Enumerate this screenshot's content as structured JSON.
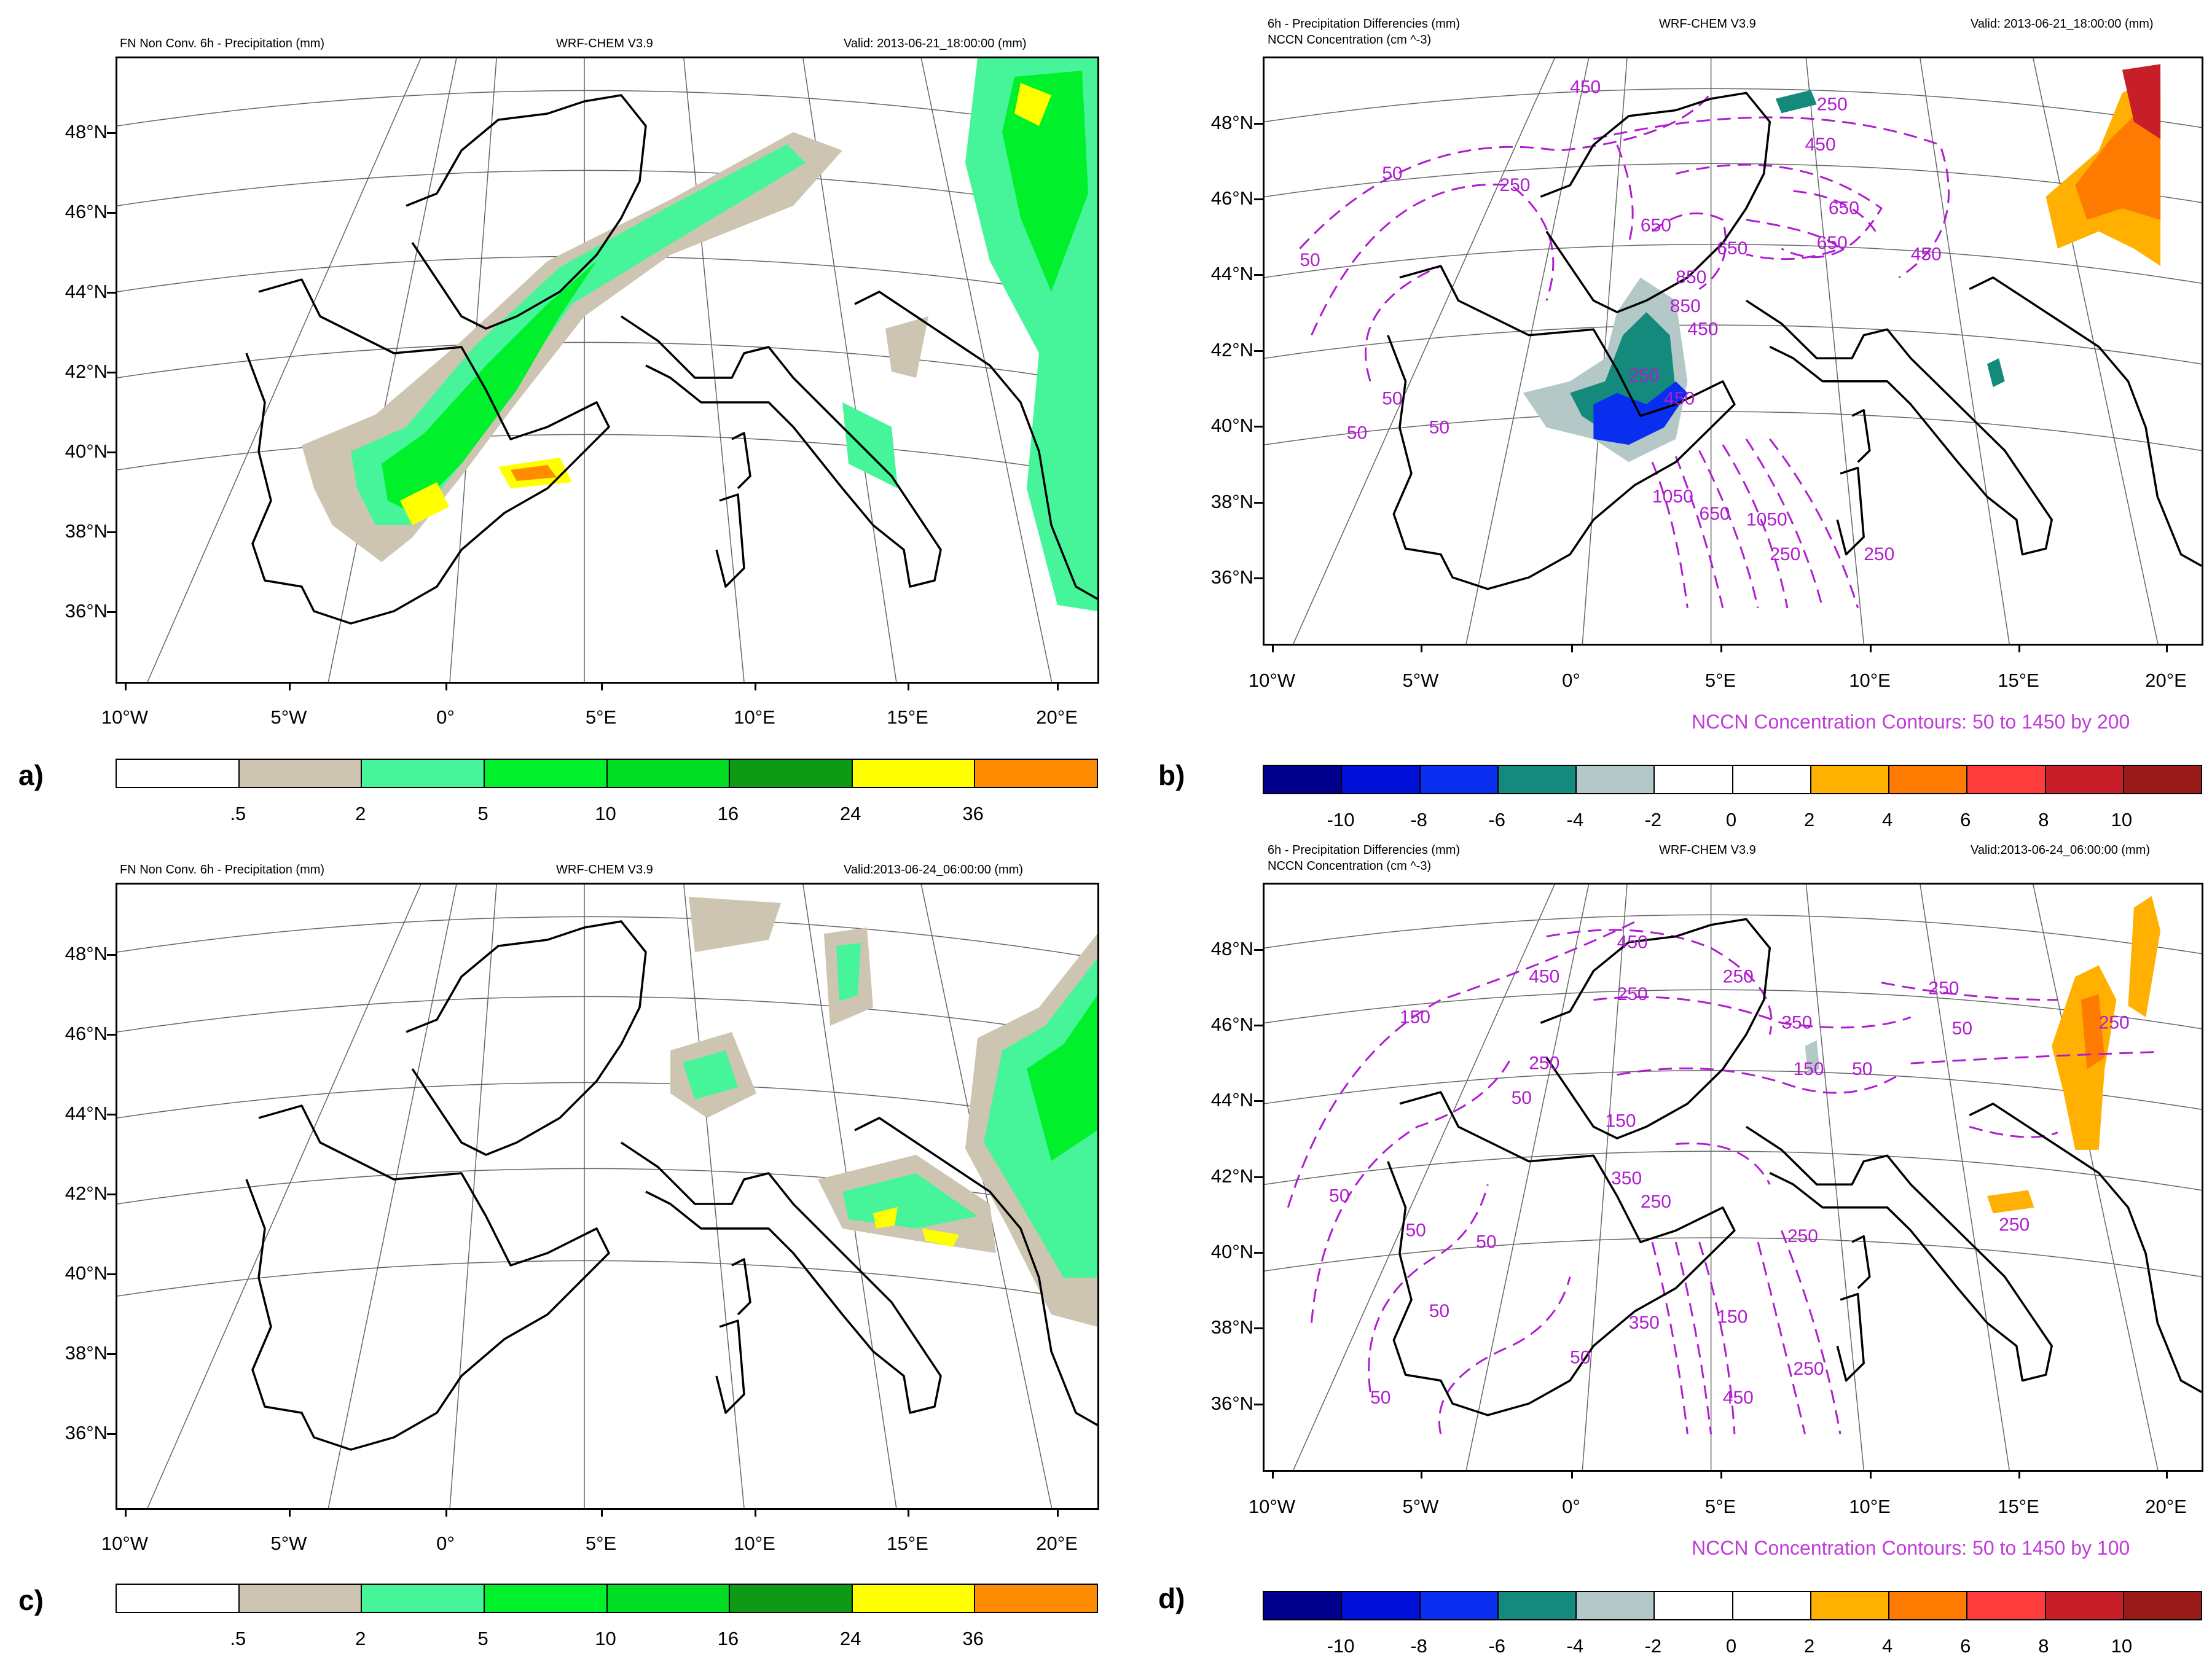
{
  "panels": [
    {
      "id": "a",
      "label": "a)",
      "header_left": "FN Non Conv. 6h - Precipitation (mm)",
      "header_left2": "",
      "header_center": "WRF-CHEM V3.9",
      "header_right": "Valid: 2013-06-21_18:00:00   (mm)",
      "type": "precip",
      "colorbar": {
        "colors": [
          "#ffffff",
          "#cdc5b1",
          "#46f59a",
          "#00f02c",
          "#00dd22",
          "#0f9a16",
          "#ffff00",
          "#ff8c00"
        ],
        "labels": [
          ".5",
          "2",
          "5",
          "10",
          "16",
          "24",
          "36"
        ]
      }
    },
    {
      "id": "b",
      "label": "b)",
      "header_left": "6h - Precipitation Differencies (mm)",
      "header_left2": "NCCN Concentration   (cm ^-3)",
      "header_center": "WRF-CHEM V3.9",
      "header_right": "Valid: 2013-06-21_18:00:00   (mm)",
      "type": "diff",
      "nccn_note": "NCCN Concentration Contours: 50 to 1450 by 200",
      "contour_labels": [
        "50",
        "50",
        "50",
        "50",
        "50",
        "250",
        "250",
        "250",
        "450",
        "450",
        "450",
        "650",
        "650",
        "650",
        "650",
        "850",
        "850",
        "1050",
        "250",
        "450",
        "650",
        "1050",
        "250",
        "450"
      ],
      "colorbar": {
        "colors": [
          "#00008c",
          "#0010d8",
          "#0a2ef0",
          "#138a7c",
          "#b4c8c8",
          "#ffffff",
          "#ffffff",
          "#ffb000",
          "#ff7a00",
          "#ff3c3c",
          "#c81e2a",
          "#9a1a1a"
        ],
        "labels": [
          "-10",
          "-8",
          "-6",
          "-4",
          "-2",
          "0",
          "2",
          "4",
          "6",
          "8",
          "10"
        ]
      }
    },
    {
      "id": "c",
      "label": "c)",
      "header_left": "FN Non Conv. 6h - Precipitation (mm)",
      "header_left2": "",
      "header_center": "WRF-CHEM V3.9",
      "header_right": "Valid:2013-06-24_06:00:00   (mm)",
      "type": "precip",
      "colorbar": {
        "colors": [
          "#ffffff",
          "#cdc5b1",
          "#46f59a",
          "#00f02c",
          "#00dd22",
          "#0f9a16",
          "#ffff00",
          "#ff8c00"
        ],
        "labels": [
          ".5",
          "2",
          "5",
          "10",
          "16",
          "24",
          "36"
        ]
      }
    },
    {
      "id": "d",
      "label": "d)",
      "header_left": "6h - Precipitation Differencies (mm)",
      "header_left2": "NCCN Concentration   (cm ^-3)",
      "header_center": "WRF-CHEM V3.9",
      "header_right": "Valid:2013-06-24_06:00:00   (mm)",
      "type": "diff",
      "nccn_note": "NCCN Concentration Contours: 50 to 1450 by 100",
      "contour_labels": [
        "450",
        "450",
        "250",
        "250",
        "150",
        "250",
        "350",
        "250",
        "150",
        "350",
        "250",
        "150",
        "50",
        "50",
        "50",
        "50",
        "50",
        "50",
        "50",
        "350",
        "150",
        "250",
        "450",
        "250",
        "50",
        "50",
        "250",
        "250"
      ],
      "colorbar": {
        "colors": [
          "#00008c",
          "#0010d8",
          "#0a2ef0",
          "#138a7c",
          "#b4c8c8",
          "#ffffff",
          "#ffffff",
          "#ffb000",
          "#ff7a00",
          "#ff3c3c",
          "#c81e2a",
          "#9a1a1a"
        ],
        "labels": [
          "-10",
          "-8",
          "-6",
          "-4",
          "-2",
          "0",
          "2",
          "4",
          "6",
          "8",
          "10"
        ]
      }
    }
  ],
  "lat_labels": [
    "48°N",
    "46°N",
    "44°N",
    "42°N",
    "40°N",
    "38°N",
    "36°N"
  ],
  "lon_labels": [
    "10°W",
    "5°W",
    "0°",
    "5°E",
    "10°E",
    "15°E",
    "20°E"
  ]
}
